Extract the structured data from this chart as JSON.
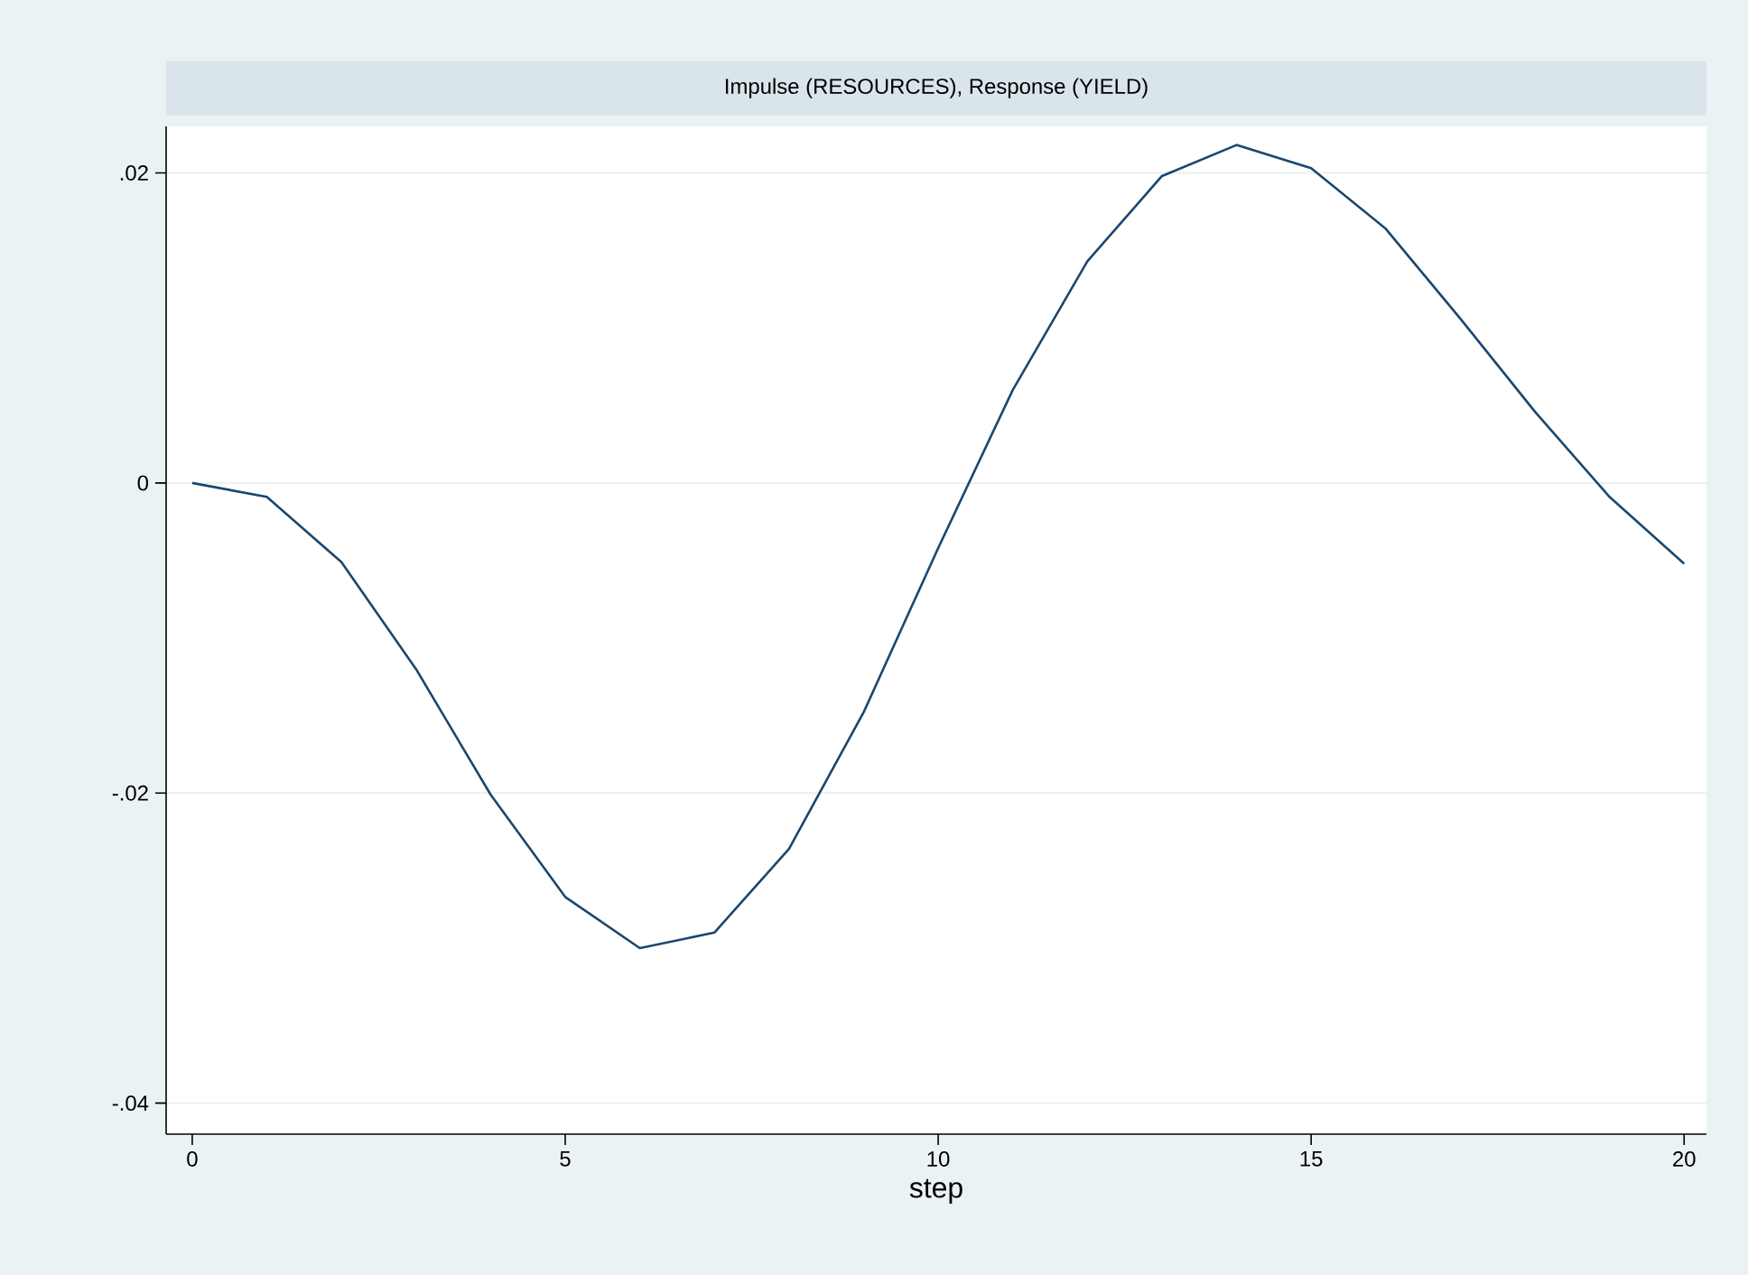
{
  "chart_data": {
    "type": "line",
    "title": "Impulse (RESOURCES), Response (YIELD)",
    "xlabel": "step",
    "x": [
      0,
      1,
      2,
      3,
      4,
      5,
      6,
      7,
      8,
      9,
      10,
      11,
      12,
      13,
      14,
      15,
      16,
      17,
      18,
      19,
      20
    ],
    "series": [
      {
        "color": "#1a476f",
        "values": [
          0,
          -0.0009,
          -0.0051,
          -0.012,
          -0.0201,
          -0.0267,
          -0.03,
          -0.029,
          -0.0236,
          -0.0148,
          -0.0042,
          0.006,
          0.0143,
          0.0198,
          0.0218,
          0.0203,
          0.0164,
          0.0106,
          0.0046,
          -0.0009,
          -0.0052
        ]
      }
    ],
    "xlim": [
      -0.35,
      20.3
    ],
    "ylim": [
      -0.042,
      0.023
    ],
    "xticks": [
      0,
      5,
      10,
      15,
      20
    ],
    "yticks": [
      {
        "value": -0.04,
        "label": "-.04"
      },
      {
        "value": -0.02,
        "label": "-.02"
      },
      {
        "value": 0,
        "label": "0"
      },
      {
        "value": 0.02,
        "label": ".02"
      }
    ],
    "grid": "y",
    "marker": "none",
    "line_style": "solid"
  }
}
